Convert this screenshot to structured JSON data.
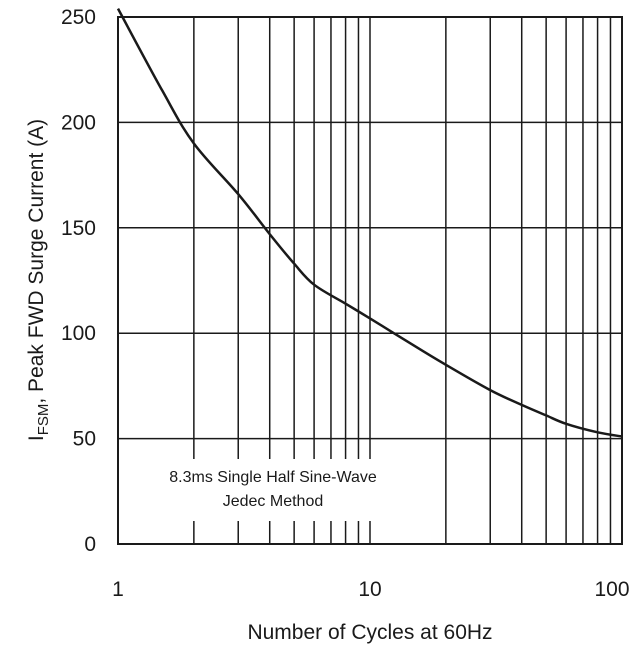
{
  "chart_data": {
    "type": "line",
    "x_scale": "log",
    "xlim": [
      1,
      100
    ],
    "ylim": [
      0,
      250
    ],
    "xlabel": "Number of Cycles at 60Hz",
    "ylabel_main": "I",
    "ylabel_sub": "FSM",
    "ylabel_rest": ", Peak FWD Surge Current (A)",
    "x_ticks": [
      1,
      10,
      100
    ],
    "x_tick_labels": [
      "1",
      "10",
      "100"
    ],
    "y_ticks": [
      0,
      50,
      100,
      150,
      200,
      250
    ],
    "y_tick_labels": [
      "0",
      "50",
      "100",
      "150",
      "200",
      "250"
    ],
    "grid": true,
    "annotation_line1": "8.3ms Single Half Sine-Wave",
    "annotation_line2": "Jedec Method",
    "series": [
      {
        "x": [
          1,
          1.5,
          2,
          3,
          4,
          5,
          6,
          8,
          10,
          15,
          20,
          30,
          40,
          50,
          60,
          80,
          100
        ],
        "values": [
          254,
          215,
          190,
          166,
          147,
          133,
          123,
          114,
          107,
          94,
          85,
          73,
          66,
          61,
          57,
          53,
          51
        ]
      }
    ]
  }
}
